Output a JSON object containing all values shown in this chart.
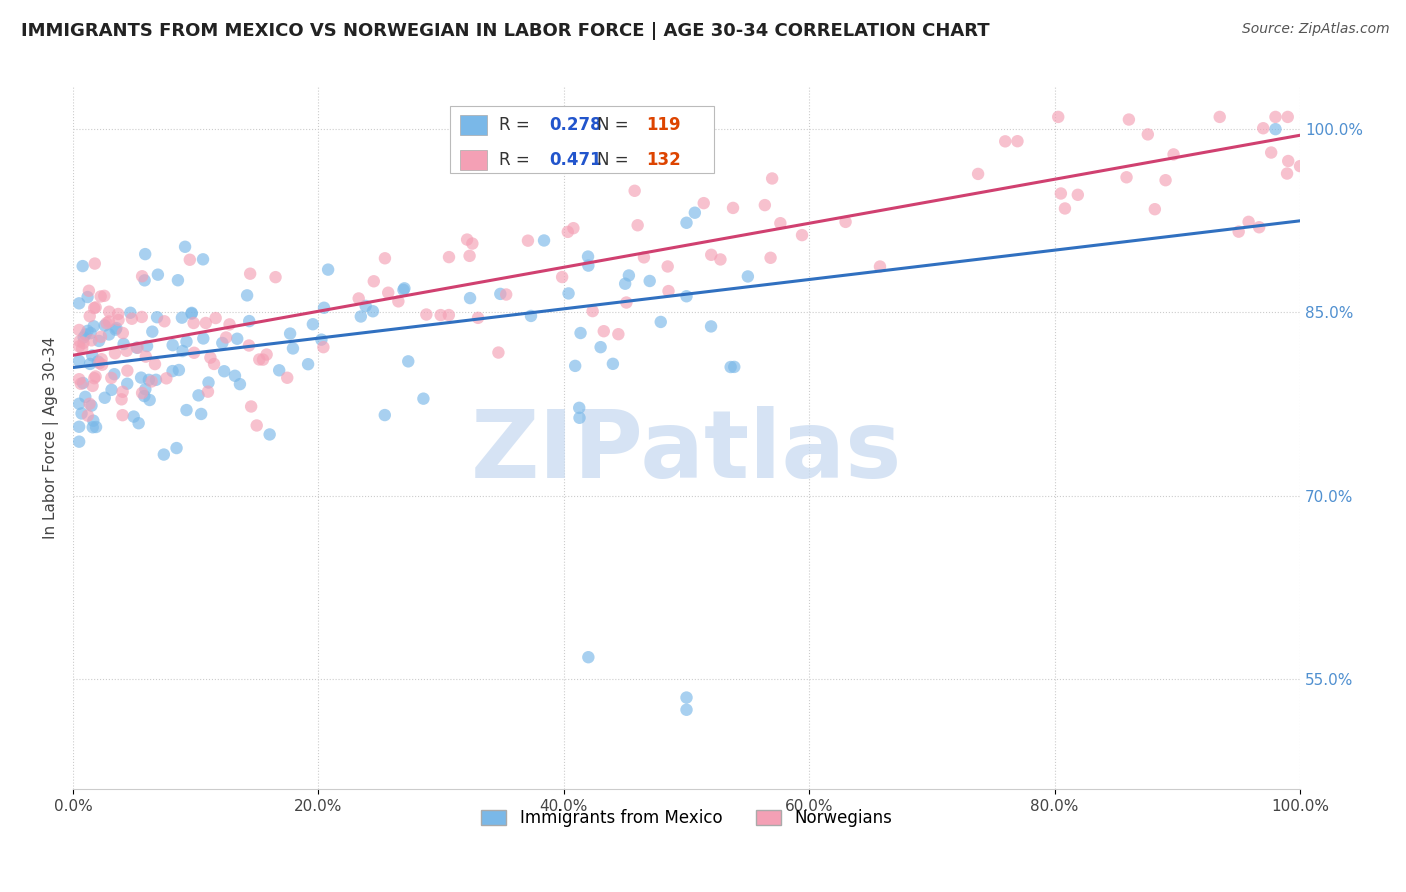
{
  "title": "IMMIGRANTS FROM MEXICO VS NORWEGIAN IN LABOR FORCE | AGE 30-34 CORRELATION CHART",
  "source": "Source: ZipAtlas.com",
  "ylabel": "In Labor Force | Age 30-34",
  "legend_blue_label": "Immigrants from Mexico",
  "legend_pink_label": "Norwegians",
  "r_blue": 0.278,
  "n_blue": 119,
  "r_pink": 0.471,
  "n_pink": 132,
  "blue_color": "#7ab8e8",
  "pink_color": "#f4a0b5",
  "blue_line_color": "#3070c0",
  "pink_line_color": "#d04070",
  "right_ytick_color": "#5090d0",
  "watermark": "ZIPatlas",
  "watermark_blue": "#c5d8f0",
  "watermark_pink": "#f0c8d5",
  "background": "#ffffff",
  "xlim": [
    0.0,
    1.0
  ],
  "ylim": [
    0.46,
    1.035
  ],
  "right_yticks": [
    0.55,
    0.7,
    0.85,
    1.0
  ],
  "right_ytick_labels": [
    "55.0%",
    "70.0%",
    "85.0%",
    "100.0%"
  ],
  "blue_scatter_seed": 101,
  "pink_scatter_seed": 202,
  "blue_trend_x0": 0.0,
  "blue_trend_y0": 0.805,
  "blue_trend_x1": 1.0,
  "blue_trend_y1": 0.925,
  "pink_trend_x0": 0.0,
  "pink_trend_y0": 0.815,
  "pink_trend_x1": 1.0,
  "pink_trend_y1": 0.995,
  "xtick_labels": [
    "0.0%",
    "",
    "20.0%",
    "",
    "40.0%",
    "",
    "60.0%",
    "",
    "80.0%",
    "",
    "100.0%"
  ]
}
